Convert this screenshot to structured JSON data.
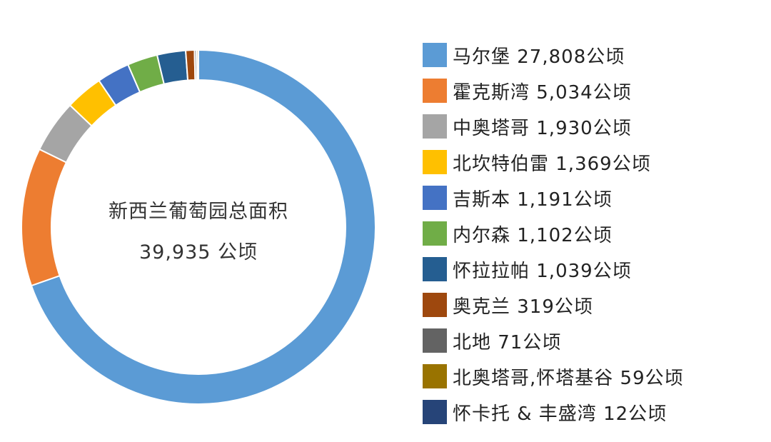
{
  "chart_data": {
    "type": "pie",
    "donut": true,
    "center_label": {
      "line1": "新西兰葡萄园总面积",
      "line2": "39,935 公顷"
    },
    "legend_position": "right",
    "unit": "公顷",
    "slices": [
      {
        "name": "马尔堡",
        "value": 27808,
        "label": "马尔堡 27,808公顷",
        "color": "#5B9BD5"
      },
      {
        "name": "霍克斯湾",
        "value": 5034,
        "label": "霍克斯湾 5,034公顷",
        "color": "#ED7D31"
      },
      {
        "name": "中奥塔哥",
        "value": 1930,
        "label": "中奥塔哥 1,930公顷",
        "color": "#A5A5A5"
      },
      {
        "name": "北坎特伯雷",
        "value": 1369,
        "label": "北坎特伯雷 1,369公顷",
        "color": "#FFC000"
      },
      {
        "name": "吉斯本",
        "value": 1191,
        "label": "吉斯本 1,191公顷",
        "color": "#4472C4"
      },
      {
        "name": "内尔森",
        "value": 1102,
        "label": "内尔森 1,102公顷",
        "color": "#70AD47"
      },
      {
        "name": "怀拉拉帕",
        "value": 1039,
        "label": "怀拉拉帕 1,039公顷",
        "color": "#255E91"
      },
      {
        "name": "奥克兰",
        "value": 319,
        "label": "奥克兰 319公顷",
        "color": "#9E480E"
      },
      {
        "name": "北地",
        "value": 71,
        "label": "北地 71公顷",
        "color": "#636363"
      },
      {
        "name": "北奥塔哥,怀塔基谷",
        "value": 59,
        "label": "北奥塔哥,怀塔基谷 59公顷",
        "color": "#997300"
      },
      {
        "name": "怀卡托 & 丰盛湾",
        "value": 12,
        "label": "怀卡托 & 丰盛湾 12公顷",
        "color": "#264478"
      }
    ]
  }
}
